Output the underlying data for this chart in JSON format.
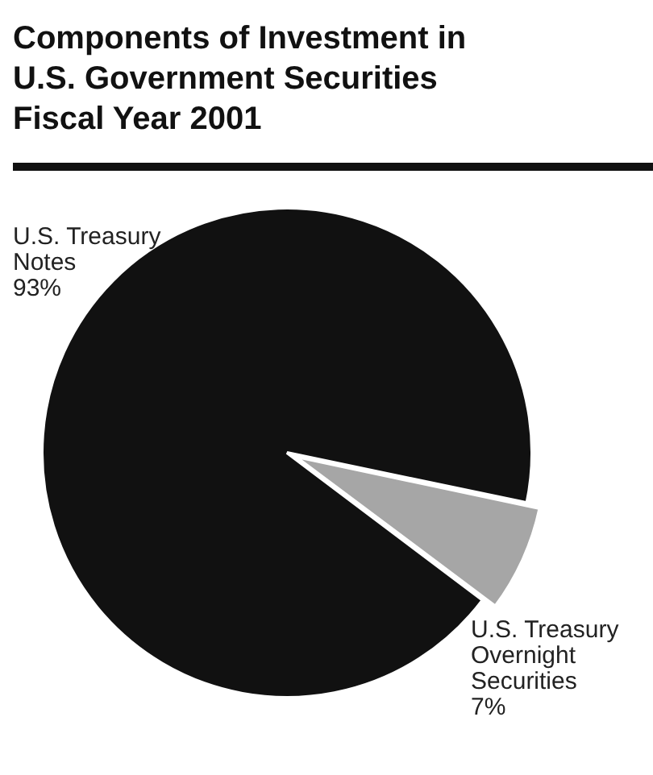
{
  "chart_data": {
    "type": "pie",
    "title": "Components of Investment in U.S. Government Securities Fiscal Year 2001",
    "categories": [
      "U.S. Treasury Notes",
      "U.S. Treasury Overnight Securities"
    ],
    "values": [
      93,
      7
    ],
    "colors": [
      "#111111",
      "#a6a6a6"
    ],
    "value_labels": [
      "93%",
      "7%"
    ],
    "legend": false
  }
}
